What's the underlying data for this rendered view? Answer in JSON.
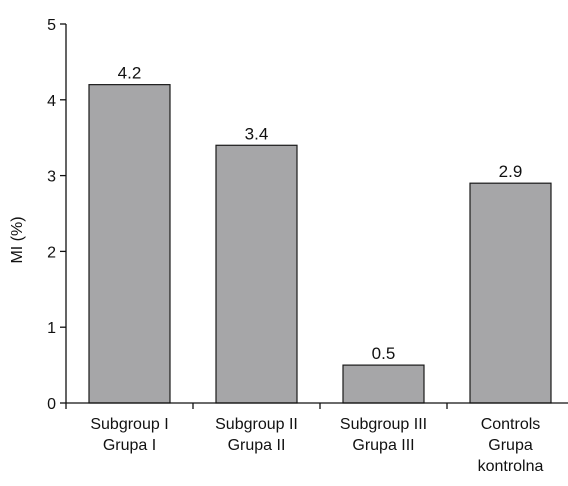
{
  "chart_data": {
    "type": "bar",
    "categories": [
      [
        "Subgroup I",
        "Grupa I"
      ],
      [
        "Subgroup II",
        "Grupa II"
      ],
      [
        "Subgroup III",
        "Grupa III"
      ],
      [
        "Controls",
        "Grupa",
        "kontrolna"
      ]
    ],
    "values": [
      4.2,
      3.4,
      0.5,
      2.9
    ],
    "data_labels": [
      "4.2",
      "3.4",
      "0.5",
      "2.9"
    ],
    "ylabel": "MI (%)",
    "ylim": [
      0,
      5
    ],
    "yticks": [
      0,
      1,
      2,
      3,
      4,
      5
    ],
    "grid": false,
    "bar_color": "#a6a6a8",
    "bar_edge_color": "#1a1a1a"
  }
}
